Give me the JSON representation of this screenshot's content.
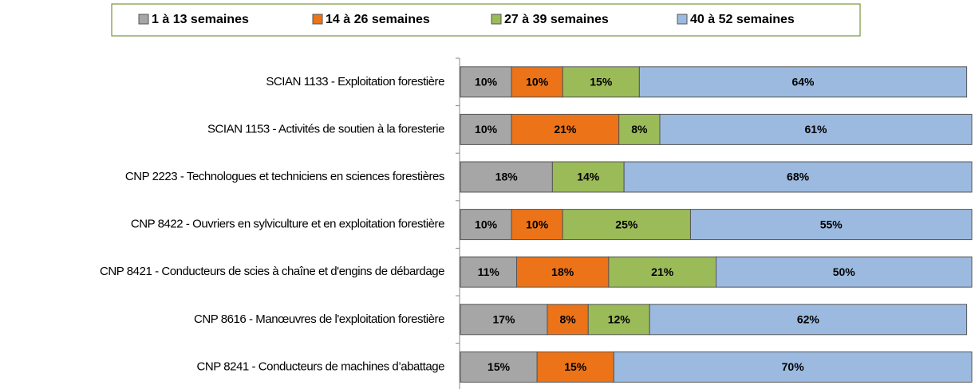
{
  "chart_data": {
    "type": "stacked-bar-horizontal",
    "categories": [
      "SCIAN 1133 - Exploitation forestière",
      "SCIAN 1153 - Activités de soutien à la foresterie",
      "CNP 2223 - Technologues et techniciens en sciences forestières",
      "CNP 8422 - Ouvriers en sylviculture et en exploitation forestière",
      "CNP 8421 - Conducteurs de scies à chaîne et d'engins de débardage",
      "CNP 8616 - Manœuvres de l'exploitation forestière",
      "CNP 8241 - Conducteurs de machines d’abattage"
    ],
    "series": [
      {
        "name": "1 à 13 semaines",
        "color": "#a6a6a6",
        "values": [
          10,
          10,
          18,
          10,
          11,
          17,
          15
        ],
        "value_labels": [
          "10%",
          "10%",
          "18%",
          "10%",
          "11%",
          "17%",
          "15%"
        ]
      },
      {
        "name": "14 à 26 semaines",
        "color": "#ec7318",
        "values": [
          10,
          21,
          null,
          10,
          18,
          8,
          15
        ],
        "value_labels": [
          "10%",
          "21%",
          null,
          "10%",
          "18%",
          "8%",
          "15%"
        ]
      },
      {
        "name": "27 à 39 semaines",
        "color": "#9bbb59",
        "values": [
          15,
          8,
          14,
          25,
          21,
          12,
          null
        ],
        "value_labels": [
          "15%",
          "8%",
          "14%",
          "25%",
          "21%",
          "12%",
          null
        ]
      },
      {
        "name": "40 à 52 semaines",
        "color": "#9cbae0",
        "values": [
          64,
          61,
          68,
          55,
          50,
          62,
          70
        ],
        "value_labels": [
          "64%",
          "61%",
          "68%",
          "55%",
          "50%",
          "62%",
          "70%"
        ]
      }
    ],
    "xlim": [
      0,
      100
    ],
    "legend": "top"
  }
}
